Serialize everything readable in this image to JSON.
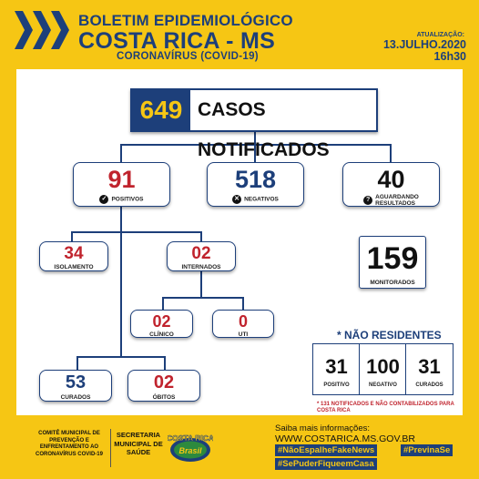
{
  "header": {
    "title": "BOLETIM EPIDEMIOLÓGICO",
    "city": "COSTA RICA - MS",
    "subtitle": "CORONAVÍRUS (COVID-19)",
    "update_label": "ATUALIZAÇÃO:",
    "date": "13.JULHO.2020",
    "time": "16h30"
  },
  "notificados": {
    "value": "649",
    "label": "CASOS NOTIFICADOS"
  },
  "positivos": {
    "value": "91",
    "label": "POSITIVOS",
    "icon": "check-icon"
  },
  "negativos": {
    "value": "518",
    "label": "NEGATIVOS",
    "icon": "x-icon"
  },
  "aguardando": {
    "value": "40",
    "label_line1": "AGUARDANDO",
    "label_line2": "RESULTADOS",
    "icon": "question-icon"
  },
  "isolamento": {
    "value": "34",
    "label": "ISOLAMENTO"
  },
  "internados": {
    "value": "02",
    "label": "INTERNADOS"
  },
  "monitorados": {
    "value": "159",
    "label": "MONITORADOS"
  },
  "clinico": {
    "value": "02",
    "label": "CLÍNICO"
  },
  "uti": {
    "value": "0",
    "label": "UTI"
  },
  "curados": {
    "value": "53",
    "label": "CURADOS"
  },
  "obitos": {
    "value": "02",
    "label": "ÓBITOS"
  },
  "nao_residentes": {
    "title": "* NÃO RESIDENTES",
    "positivo": {
      "value": "31",
      "label": "POSITIVO"
    },
    "negativo": {
      "value": "100",
      "label": "NEGATIVO"
    },
    "curados": {
      "value": "31",
      "label": "CURADOS"
    },
    "note": "* 131 NOTIFICADOS E NÃO CONTABILIZADOS PARA COSTA RICA"
  },
  "footer": {
    "comite": "COMITÊ MUNICIPAL DE PREVENÇÃO E ENFRENTAMENTO AO CORONAVÍRUS COVID-19",
    "secretaria": "SECRETARIA MUNICIPAL DE SAÚDE",
    "logo_line1": "COSTA RICA",
    "logo_line2": "Brasil",
    "saiba": "Saiba mais informações:",
    "site": "WWW.COSTARICA.MS.GOV.BR",
    "tags": [
      "#NãoEspalheFakeNews",
      "#PrevinaSe",
      "#SePuderFiqueemCasa"
    ]
  },
  "colors": {
    "brand_blue": "#1d3f7a",
    "brand_yellow": "#f6c614",
    "alert_red": "#c0232d"
  }
}
